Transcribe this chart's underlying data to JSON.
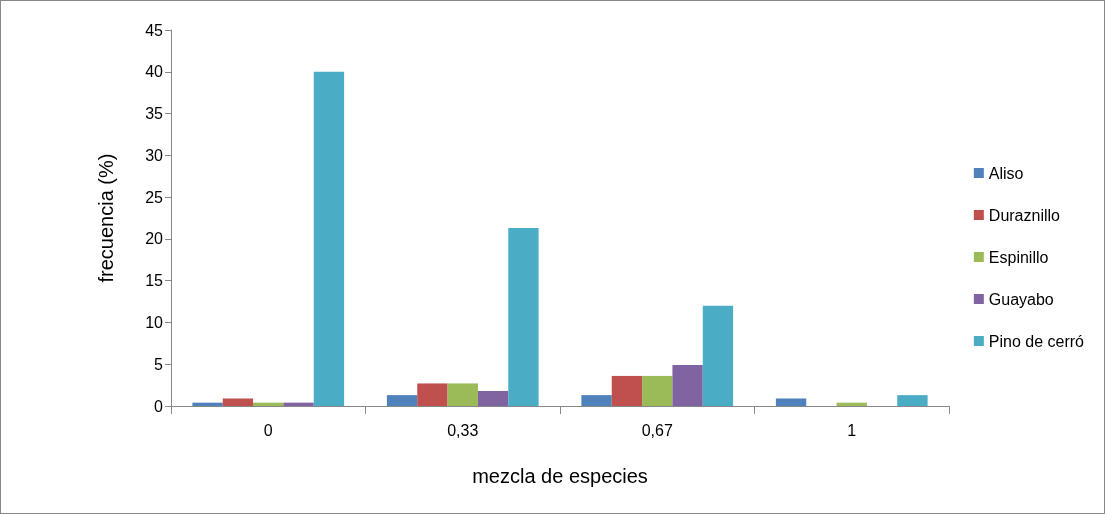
{
  "chart_data": {
    "type": "bar",
    "xlabel": "mezcla de especies",
    "ylabel": "frecuencia (%)",
    "categories": [
      "0",
      "0,33",
      "0,67",
      "1"
    ],
    "series": [
      {
        "name": "Aliso",
        "color": "#4f81bd",
        "values": [
          0.4,
          1.3,
          1.3,
          0.9
        ]
      },
      {
        "name": "Duraznillo",
        "color": "#c0504d",
        "values": [
          0.9,
          2.7,
          3.6,
          0
        ]
      },
      {
        "name": "Espinillo",
        "color": "#9bbb59",
        "values": [
          0.4,
          2.7,
          3.6,
          0.4
        ]
      },
      {
        "name": "Guayabo",
        "color": "#8064a2",
        "values": [
          0.4,
          1.8,
          4.9,
          0
        ]
      },
      {
        "name": "Pino de cerró",
        "color": "#4bacc6",
        "values": [
          40,
          21.3,
          12.0,
          1.3
        ]
      }
    ],
    "ylim": [
      0,
      45
    ],
    "yticks": [
      0,
      5,
      10,
      15,
      20,
      25,
      30,
      35,
      40,
      45
    ],
    "grid": false,
    "legend": "right"
  }
}
